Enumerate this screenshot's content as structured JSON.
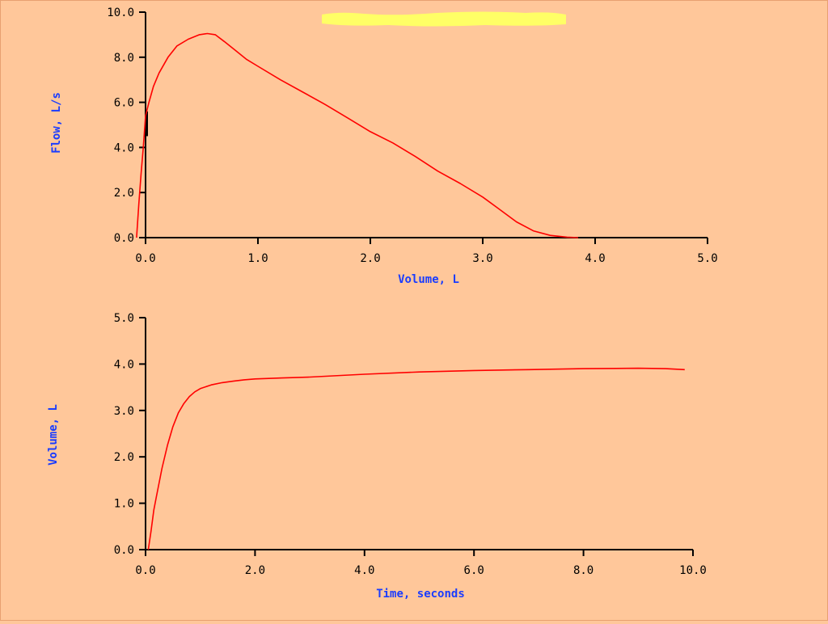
{
  "colors": {
    "background": "#ffc79a",
    "curve": "#ff0000",
    "axis": "#000000",
    "axis_title": "#1a3cff",
    "highlight": "#ffff66"
  },
  "chart_data": [
    {
      "type": "line",
      "title": "",
      "xlabel": "Volume, L",
      "ylabel": "Flow, L/s",
      "xlim": [
        0.0,
        5.0
      ],
      "ylim": [
        0.0,
        10.0
      ],
      "xticks": [
        "0.0",
        "1.0",
        "2.0",
        "3.0",
        "4.0",
        "5.0"
      ],
      "yticks": [
        "0.0",
        "2.0",
        "4.0",
        "6.0",
        "8.0",
        "10.0"
      ],
      "grid": false,
      "series": [
        {
          "x": [
            -0.08,
            -0.06,
            -0.04,
            -0.02,
            0.0,
            0.03,
            0.07,
            0.12,
            0.2,
            0.28,
            0.38,
            0.48,
            0.55,
            0.62,
            0.7,
            0.8,
            0.9,
            1.0,
            1.2,
            1.4,
            1.6,
            1.8,
            2.0,
            2.2,
            2.4,
            2.6,
            2.8,
            3.0,
            3.15,
            3.3,
            3.45,
            3.6,
            3.75,
            3.85
          ],
          "y": [
            0.0,
            1.5,
            2.8,
            4.0,
            5.4,
            6.0,
            6.7,
            7.3,
            8.0,
            8.5,
            8.8,
            9.0,
            9.05,
            9.0,
            8.7,
            8.3,
            7.9,
            7.6,
            7.0,
            6.45,
            5.9,
            5.3,
            4.7,
            4.2,
            3.6,
            2.95,
            2.4,
            1.8,
            1.25,
            0.7,
            0.3,
            0.1,
            0.02,
            0.0
          ]
        }
      ],
      "annotations": [
        {
          "type": "vertical_bar",
          "x": 0.0,
          "y_range": [
            4.5,
            5.6
          ]
        }
      ]
    },
    {
      "type": "line",
      "title": "",
      "xlabel": "Time, seconds",
      "ylabel": "Volume, L",
      "xlim": [
        0.0,
        10.0
      ],
      "ylim": [
        0.0,
        5.0
      ],
      "xticks": [
        "0.0",
        "2.0",
        "4.0",
        "6.0",
        "8.0",
        "10.0"
      ],
      "yticks": [
        "0.0",
        "1.0",
        "2.0",
        "3.0",
        "4.0",
        "5.0"
      ],
      "grid": false,
      "series": [
        {
          "x": [
            0.05,
            0.1,
            0.15,
            0.2,
            0.3,
            0.4,
            0.5,
            0.6,
            0.7,
            0.8,
            0.9,
            1.0,
            1.2,
            1.4,
            1.6,
            1.8,
            2.0,
            2.5,
            3.0,
            4.0,
            5.0,
            6.0,
            7.0,
            8.0,
            9.0,
            9.5,
            9.85
          ],
          "y": [
            0.0,
            0.4,
            0.85,
            1.15,
            1.75,
            2.25,
            2.65,
            2.95,
            3.15,
            3.3,
            3.4,
            3.47,
            3.55,
            3.6,
            3.63,
            3.66,
            3.68,
            3.7,
            3.72,
            3.78,
            3.83,
            3.86,
            3.88,
            3.9,
            3.91,
            3.9,
            3.88
          ]
        }
      ]
    }
  ]
}
